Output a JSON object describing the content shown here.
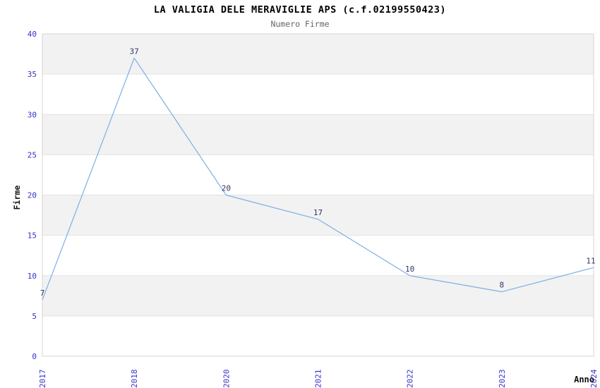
{
  "chart_data": {
    "type": "line",
    "title": "LA VALIGIA DELE MERAVIGLIE APS (c.f.02199550423)",
    "subtitle": "Numero Firme",
    "xlabel": "Anno",
    "ylabel": "Firme",
    "categories": [
      "2017",
      "2018",
      "2020",
      "2021",
      "2022",
      "2023",
      "2024"
    ],
    "values": [
      7,
      37,
      20,
      17,
      10,
      8,
      11
    ],
    "ylim": [
      0,
      40
    ],
    "ytick_step": 5,
    "ytick_labels": [
      "0",
      "5",
      "10",
      "15",
      "20",
      "25",
      "30",
      "35",
      "40"
    ],
    "grid": "alternating-horizontal-bands",
    "legend": "none",
    "point_labels_shown": true,
    "colors": {
      "line": "#7dafe4",
      "tick_labels": "#3333cc",
      "point_labels": "#333366",
      "band_fill": "#f2f2f2",
      "gridline": "#e2e2e2",
      "plot_border": "#d5d5d5",
      "title": "#000000",
      "subtitle": "#666666",
      "axis_titles": "#111111",
      "background": "#ffffff"
    }
  }
}
